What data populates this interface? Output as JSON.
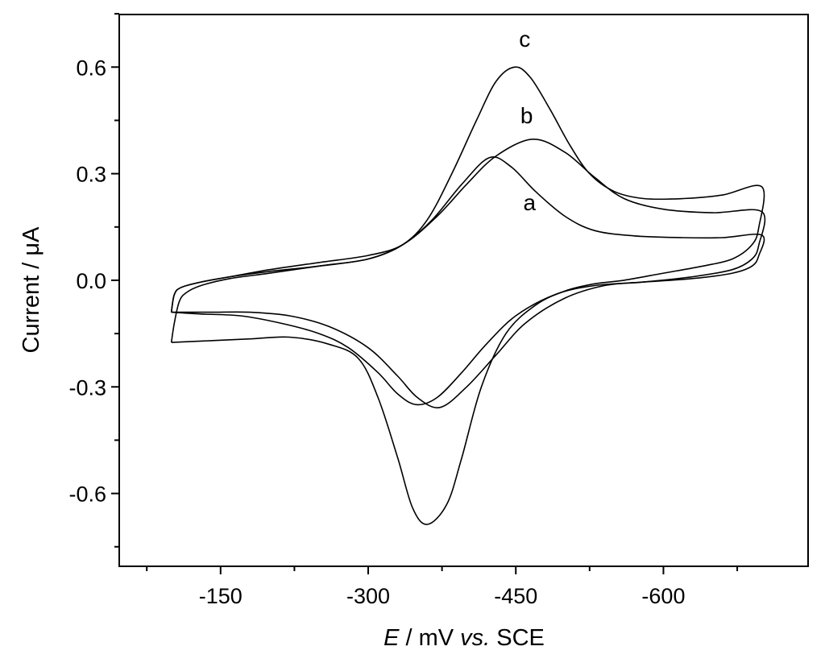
{
  "chart_data": {
    "type": "line",
    "title": "",
    "xlabel_parts": {
      "symbol": "E",
      "mid": " / mV ",
      "vs": "vs.",
      "ref": " SCE"
    },
    "ylabel": "Current / μA",
    "xlim": [
      -47,
      -747
    ],
    "ylim": [
      -0.805,
      0.748
    ],
    "x_major_ticks": [
      -150,
      -300,
      -450,
      -600
    ],
    "x_tick_labels": [
      "-150",
      "-300",
      "-450",
      "-600"
    ],
    "x_minor_ticks": [
      -75,
      -225,
      -375,
      -525,
      -675
    ],
    "y_major_ticks": [
      0.6,
      0.3,
      0.0,
      -0.3,
      -0.6
    ],
    "y_tick_labels": [
      "0.6",
      "0.3",
      "0.0",
      "-0.3",
      "-0.6"
    ],
    "y_minor_ticks": [
      0.75,
      0.45,
      0.15,
      -0.15,
      -0.45,
      -0.75
    ],
    "grid": false,
    "series": [
      {
        "name": "a",
        "label_pos": [
          -464,
          0.22
        ],
        "points": [
          [
            -100,
            -0.09
          ],
          [
            -103,
            -0.04
          ],
          [
            -110,
            -0.02
          ],
          [
            -130,
            -0.005
          ],
          [
            -160,
            0.01
          ],
          [
            -200,
            0.025
          ],
          [
            -250,
            0.04
          ],
          [
            -300,
            0.06
          ],
          [
            -335,
            0.1
          ],
          [
            -365,
            0.17
          ],
          [
            -395,
            0.27
          ],
          [
            -423,
            0.345
          ],
          [
            -445,
            0.32
          ],
          [
            -470,
            0.25
          ],
          [
            -500,
            0.18
          ],
          [
            -530,
            0.14
          ],
          [
            -570,
            0.125
          ],
          [
            -620,
            0.12
          ],
          [
            -660,
            0.12
          ],
          [
            -700,
            0.127
          ],
          [
            -697,
            0.07
          ],
          [
            -690,
            0.04
          ],
          [
            -670,
            0.02
          ],
          [
            -630,
            0.005
          ],
          [
            -580,
            -0.005
          ],
          [
            -530,
            -0.015
          ],
          [
            -490,
            -0.04
          ],
          [
            -450,
            -0.1
          ],
          [
            -420,
            -0.18
          ],
          [
            -395,
            -0.26
          ],
          [
            -370,
            -0.33
          ],
          [
            -349,
            -0.35
          ],
          [
            -330,
            -0.32
          ],
          [
            -310,
            -0.26
          ],
          [
            -280,
            -0.19
          ],
          [
            -250,
            -0.15
          ],
          [
            -210,
            -0.12
          ],
          [
            -170,
            -0.1
          ],
          [
            -130,
            -0.095
          ],
          [
            -100,
            -0.09
          ]
        ]
      },
      {
        "name": "b",
        "label_pos": [
          -461,
          0.465
        ],
        "points": [
          [
            -100,
            -0.09
          ],
          [
            -103,
            -0.04
          ],
          [
            -110,
            -0.02
          ],
          [
            -130,
            -0.005
          ],
          [
            -160,
            0.01
          ],
          [
            -200,
            0.03
          ],
          [
            -250,
            0.05
          ],
          [
            -300,
            0.07
          ],
          [
            -335,
            0.1
          ],
          [
            -370,
            0.18
          ],
          [
            -400,
            0.27
          ],
          [
            -430,
            0.35
          ],
          [
            -467,
            0.397
          ],
          [
            -500,
            0.36
          ],
          [
            -530,
            0.29
          ],
          [
            -560,
            0.23
          ],
          [
            -600,
            0.2
          ],
          [
            -650,
            0.19
          ],
          [
            -700,
            0.193
          ],
          [
            -697,
            0.1
          ],
          [
            -690,
            0.06
          ],
          [
            -670,
            0.03
          ],
          [
            -630,
            0.01
          ],
          [
            -580,
            -0.005
          ],
          [
            -540,
            -0.015
          ],
          [
            -500,
            -0.05
          ],
          [
            -460,
            -0.12
          ],
          [
            -430,
            -0.21
          ],
          [
            -400,
            -0.3
          ],
          [
            -373,
            -0.358
          ],
          [
            -350,
            -0.33
          ],
          [
            -330,
            -0.27
          ],
          [
            -300,
            -0.19
          ],
          [
            -260,
            -0.13
          ],
          [
            -220,
            -0.1
          ],
          [
            -180,
            -0.09
          ],
          [
            -140,
            -0.09
          ],
          [
            -100,
            -0.09
          ]
        ]
      },
      {
        "name": "c",
        "label_pos": [
          -459,
          0.68
        ],
        "points": [
          [
            -100,
            -0.175
          ],
          [
            -103,
            -0.12
          ],
          [
            -108,
            -0.06
          ],
          [
            -115,
            -0.035
          ],
          [
            -130,
            -0.015
          ],
          [
            -160,
            0.005
          ],
          [
            -200,
            0.02
          ],
          [
            -250,
            0.04
          ],
          [
            -300,
            0.06
          ],
          [
            -335,
            0.1
          ],
          [
            -360,
            0.17
          ],
          [
            -385,
            0.3
          ],
          [
            -410,
            0.45
          ],
          [
            -430,
            0.56
          ],
          [
            -449,
            0.6
          ],
          [
            -465,
            0.57
          ],
          [
            -485,
            0.48
          ],
          [
            -505,
            0.38
          ],
          [
            -525,
            0.3
          ],
          [
            -550,
            0.25
          ],
          [
            -580,
            0.23
          ],
          [
            -620,
            0.23
          ],
          [
            -660,
            0.24
          ],
          [
            -700,
            0.263
          ],
          [
            -697,
            0.15
          ],
          [
            -690,
            0.1
          ],
          [
            -670,
            0.06
          ],
          [
            -640,
            0.04
          ],
          [
            -600,
            0.02
          ],
          [
            -560,
            0.0
          ],
          [
            -530,
            -0.01
          ],
          [
            -500,
            -0.03
          ],
          [
            -470,
            -0.07
          ],
          [
            -440,
            -0.15
          ],
          [
            -415,
            -0.3
          ],
          [
            -395,
            -0.5
          ],
          [
            -380,
            -0.63
          ],
          [
            -360,
            -0.687
          ],
          [
            -345,
            -0.64
          ],
          [
            -330,
            -0.5
          ],
          [
            -310,
            -0.33
          ],
          [
            -290,
            -0.22
          ],
          [
            -260,
            -0.18
          ],
          [
            -220,
            -0.16
          ],
          [
            -180,
            -0.165
          ],
          [
            -140,
            -0.17
          ],
          [
            -100,
            -0.175
          ]
        ]
      }
    ]
  }
}
